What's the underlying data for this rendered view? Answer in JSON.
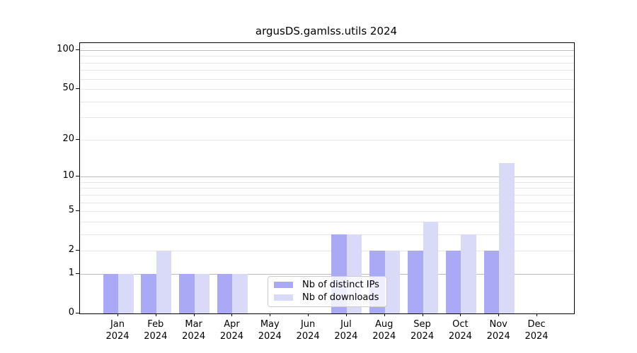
{
  "chart_data": {
    "type": "bar",
    "title": "argusDS.gamlss.utils 2024",
    "categories": [
      "Jan",
      "Feb",
      "Mar",
      "Apr",
      "May",
      "Jun",
      "Jul",
      "Aug",
      "Sep",
      "Oct",
      "Nov",
      "Dec"
    ],
    "year_label": "2024",
    "series": [
      {
        "name": "Nb of distinct IPs",
        "color": "#a9a9f6",
        "values": [
          1,
          1,
          1,
          1,
          0,
          0,
          3,
          2,
          2,
          2,
          2,
          0
        ]
      },
      {
        "name": "Nb of downloads",
        "color": "#d9d9f8",
        "values": [
          1,
          2,
          1,
          1,
          0,
          0,
          3,
          2,
          4,
          3,
          13,
          0
        ]
      }
    ],
    "yscale": "log1p",
    "ylim": [
      0,
      100
    ],
    "yticks": [
      0,
      1,
      2,
      5,
      10,
      20,
      50,
      100
    ],
    "major_gridlines": [
      1,
      10,
      100
    ],
    "minor_gridlines": [
      2,
      3,
      4,
      5,
      6,
      7,
      8,
      9,
      20,
      30,
      40,
      50,
      60,
      70,
      80,
      90
    ],
    "xlabel": "",
    "ylabel": "",
    "legend_position": "inside-bottom-center",
    "colors": {
      "spine": "#000000",
      "major_grid": "#bbbbbb",
      "minor_grid": "#e8e8e8",
      "tick_label": "#000000",
      "legend_border": "#cccccc"
    }
  }
}
